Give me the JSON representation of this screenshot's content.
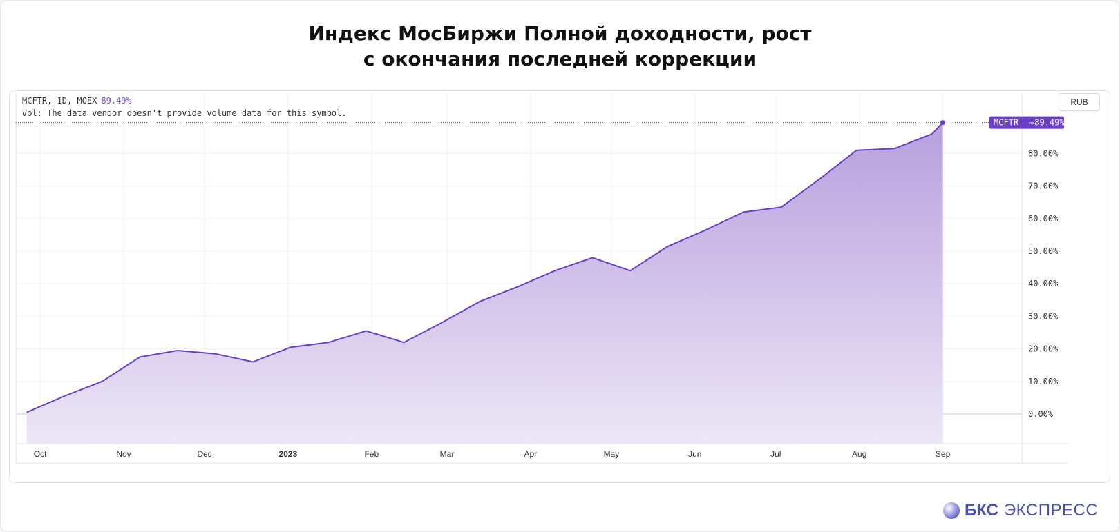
{
  "title": {
    "line1": "Индекс МосБиржи Полной доходности, рост",
    "line2": "с окончания последней коррекции"
  },
  "legend": {
    "symbol": "MCFTR, 1D, MOEX",
    "change": "89.49%",
    "volume_note": "Vol: The data vendor doesn't provide volume data for this symbol."
  },
  "currency_button": "RUB",
  "brand": {
    "bold": "БКС",
    "light": "ЭКСПРЕСС",
    "logo_icon": "bks-sphere-icon"
  },
  "colors": {
    "line": "#6a3fc4",
    "area_top": "#b49bdc",
    "area_bottom": "#ede7f6",
    "label_bg": "#6a3fc4"
  },
  "chart_data": {
    "type": "area",
    "series": [
      {
        "name": "MCFTR",
        "last_label": "+89.49%"
      }
    ],
    "x": [
      "2022-09-26",
      "2022-10-10",
      "2022-10-24",
      "2022-11-07",
      "2022-11-21",
      "2022-12-05",
      "2022-12-19",
      "2023-01-02",
      "2023-01-16",
      "2023-01-30",
      "2023-02-13",
      "2023-02-27",
      "2023-03-13",
      "2023-03-27",
      "2023-04-10",
      "2023-04-24",
      "2023-05-08",
      "2023-05-22",
      "2023-06-05",
      "2023-06-19",
      "2023-07-03",
      "2023-07-17",
      "2023-07-31",
      "2023-08-14",
      "2023-08-28",
      "2023-09-01"
    ],
    "y": [
      0.5,
      5.5,
      10,
      17.5,
      19.5,
      18.5,
      16,
      20.5,
      22,
      25.5,
      22,
      28,
      34.5,
      39,
      44,
      48,
      44,
      51.5,
      56.5,
      62,
      63.5,
      72,
      81,
      81.5,
      86,
      89.49
    ],
    "x_ticks": [
      "Oct",
      "Nov",
      "Dec",
      "2023",
      "Feb",
      "Mar",
      "Apr",
      "May",
      "Jun",
      "Jul",
      "Aug",
      "Sep"
    ],
    "y_ticks": [
      "0.00%",
      "10.00%",
      "20.00%",
      "30.00%",
      "40.00%",
      "50.00%",
      "60.00%",
      "70.00%",
      "80.00%"
    ],
    "ylim": [
      -9,
      89.49
    ],
    "grid": true,
    "y_axis": "right",
    "last_value_marker": true
  }
}
